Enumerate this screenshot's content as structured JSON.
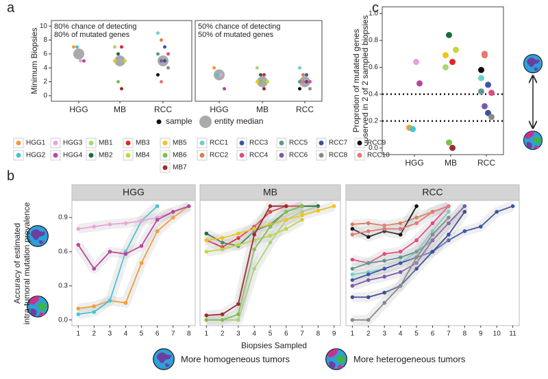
{
  "chart_data": [
    {
      "type": "dot",
      "panel": "a",
      "ylabel": "Minimum Biopsies",
      "annotation": [
        "80% chance of detecting",
        "80% of mutated genes"
      ],
      "categories": [
        "HGG",
        "MB",
        "RCC"
      ],
      "ylim": [
        -0.8,
        10.8
      ],
      "yticks": [
        0,
        2,
        4,
        6,
        8,
        10
      ],
      "marker_legend": [
        "sample",
        "entity median"
      ],
      "median_color": "#aaaaaa",
      "medians": [
        6,
        5,
        5
      ],
      "series": [
        {
          "color": "#f39c35",
          "values": [
            7,
            null,
            null
          ]
        },
        {
          "color": "#45c4d6",
          "values": [
            7,
            null,
            null
          ]
        },
        {
          "color": "#e9a3d9",
          "values": [
            5,
            null,
            null
          ]
        },
        {
          "color": "#b8469f",
          "values": [
            5,
            null,
            null
          ]
        },
        {
          "color": "#a8d672",
          "values": [
            null,
            7,
            null
          ]
        },
        {
          "color": "#1e6b3c",
          "values": [
            null,
            6,
            null
          ]
        },
        {
          "color": "#e0262a",
          "values": [
            null,
            7,
            null
          ]
        },
        {
          "color": "#c3d63b",
          "values": [
            null,
            5,
            null
          ]
        },
        {
          "color": "#f2c31a",
          "values": [
            null,
            5,
            null
          ]
        },
        {
          "color": "#7cc24a",
          "values": [
            null,
            2,
            null
          ]
        },
        {
          "color": "#9b2b30",
          "values": [
            null,
            1,
            null
          ]
        },
        {
          "color": "#6ad1cc",
          "values": [
            null,
            null,
            9
          ]
        },
        {
          "color": "#df7a58",
          "values": [
            null,
            null,
            8
          ]
        },
        {
          "color": "#3a56a8",
          "values": [
            null,
            null,
            7
          ]
        },
        {
          "color": "#e34b7e",
          "values": [
            null,
            null,
            6
          ]
        },
        {
          "color": "#5f9595",
          "values": [
            null,
            null,
            6
          ]
        },
        {
          "color": "#7a5aa8",
          "values": [
            null,
            null,
            5
          ]
        },
        {
          "color": "#3f4e95",
          "values": [
            null,
            null,
            5
          ]
        },
        {
          "color": "#8a8a8a",
          "values": [
            null,
            null,
            4
          ]
        },
        {
          "color": "#111111",
          "values": [
            null,
            null,
            3
          ]
        },
        {
          "color": "#e87575",
          "values": [
            null,
            null,
            2
          ]
        }
      ]
    },
    {
      "type": "dot",
      "annotation": [
        "50% chance of detecting",
        "50% of mutated genes"
      ],
      "categories": [
        "HGG",
        "MB",
        "RCC"
      ],
      "ylim": [
        -0.8,
        10.8
      ],
      "median_color": "#aaaaaa",
      "medians": [
        3,
        2,
        2
      ],
      "series": [
        {
          "color": "#f39c35",
          "values": [
            4,
            null,
            null
          ]
        },
        {
          "color": "#45c4d6",
          "values": [
            3,
            null,
            null
          ]
        },
        {
          "color": "#e9a3d9",
          "values": [
            3,
            null,
            null
          ]
        },
        {
          "color": "#b8469f",
          "values": [
            1,
            null,
            null
          ]
        },
        {
          "color": "#a8d672",
          "values": [
            null,
            4,
            null
          ]
        },
        {
          "color": "#1e6b3c",
          "values": [
            null,
            3,
            null
          ]
        },
        {
          "color": "#e0262a",
          "values": [
            null,
            3,
            null
          ]
        },
        {
          "color": "#c3d63b",
          "values": [
            null,
            2,
            null
          ]
        },
        {
          "color": "#f2c31a",
          "values": [
            null,
            2,
            null
          ]
        },
        {
          "color": "#7cc24a",
          "values": [
            null,
            2,
            null
          ]
        },
        {
          "color": "#9b2b30",
          "values": [
            null,
            1,
            null
          ]
        },
        {
          "color": "#6ad1cc",
          "values": [
            null,
            null,
            4
          ]
        },
        {
          "color": "#df7a58",
          "values": [
            null,
            null,
            3
          ]
        },
        {
          "color": "#3a56a8",
          "values": [
            null,
            null,
            3
          ]
        },
        {
          "color": "#e34b7e",
          "values": [
            null,
            null,
            2
          ]
        },
        {
          "color": "#5f9595",
          "values": [
            null,
            null,
            2
          ]
        },
        {
          "color": "#7a5aa8",
          "values": [
            null,
            null,
            2
          ]
        },
        {
          "color": "#3f4e95",
          "values": [
            null,
            null,
            2
          ]
        },
        {
          "color": "#8a8a8a",
          "values": [
            null,
            null,
            1
          ]
        },
        {
          "color": "#111111",
          "values": [
            null,
            null,
            1
          ]
        },
        {
          "color": "#e87575",
          "values": [
            null,
            null,
            2
          ]
        }
      ]
    },
    {
      "type": "dot",
      "panel": "c",
      "ylabel": [
        "Proprotion of mutated genes",
        "observed in 2 of 2 sampled biopsies"
      ],
      "categories": [
        "HGG",
        "MB",
        "RCC"
      ],
      "ylim": [
        -0.05,
        1.05
      ],
      "yticks": [
        {
          "value": 0,
          "label": "0.0"
        },
        {
          "value": 0.2,
          "label": "0.2"
        },
        {
          "value": 0.4,
          "label": "0.4"
        },
        {
          "value": 0.6,
          "label": "0.6"
        },
        {
          "value": 0.8,
          "label": "0.8"
        },
        {
          "value": 1,
          "label": "1.0"
        }
      ],
      "hlines": [
        0.4,
        0.2
      ],
      "series": [
        {
          "color": "#f39c35",
          "values": [
            0.15,
            null,
            null
          ]
        },
        {
          "color": "#45c4d6",
          "values": [
            0.14,
            null,
            null
          ]
        },
        {
          "color": "#e9a3d9",
          "values": [
            0.64,
            null,
            null
          ]
        },
        {
          "color": "#b8469f",
          "values": [
            0.48,
            null,
            null
          ]
        },
        {
          "color": "#a8d672",
          "values": [
            null,
            0.6,
            null
          ]
        },
        {
          "color": "#1e6b3c",
          "values": [
            null,
            0.84,
            null
          ]
        },
        {
          "color": "#e0262a",
          "values": [
            null,
            0.64,
            null
          ]
        },
        {
          "color": "#c3d63b",
          "values": [
            null,
            0.73,
            null
          ]
        },
        {
          "color": "#f2c31a",
          "values": [
            null,
            0.69,
            null
          ]
        },
        {
          "color": "#7cc24a",
          "values": [
            null,
            0.04,
            null
          ]
        },
        {
          "color": "#9b2b30",
          "values": [
            null,
            0.0,
            null
          ]
        },
        {
          "color": "#6ad1cc",
          "values": [
            null,
            null,
            0.52
          ]
        },
        {
          "color": "#df7a58",
          "values": [
            null,
            null,
            0.69
          ]
        },
        {
          "color": "#3a56a8",
          "values": [
            null,
            null,
            0.47
          ]
        },
        {
          "color": "#e34b7e",
          "values": [
            null,
            null,
            0.41
          ]
        },
        {
          "color": "#5f9595",
          "values": [
            null,
            null,
            0.42
          ]
        },
        {
          "color": "#7a5aa8",
          "values": [
            null,
            null,
            0.31
          ]
        },
        {
          "color": "#3f4e95",
          "values": [
            null,
            null,
            0.26
          ]
        },
        {
          "color": "#8a8a8a",
          "values": [
            null,
            null,
            0.23
          ]
        },
        {
          "color": "#111111",
          "values": [
            null,
            null,
            0.58
          ]
        },
        {
          "color": "#e87575",
          "values": [
            null,
            null,
            0.7
          ]
        }
      ]
    },
    {
      "type": "line",
      "title": "HGG",
      "x": [
        1,
        2,
        3,
        4,
        5,
        6,
        7,
        8
      ],
      "xticks": [
        1,
        2,
        3,
        4,
        5,
        6,
        7,
        8
      ],
      "xlim": [
        0.6,
        8.4
      ],
      "ylim": [
        -0.05,
        1.05
      ],
      "yticks": [
        {
          "value": 0,
          "label": "0.0"
        },
        {
          "value": 0.3,
          "label": "0.3"
        },
        {
          "value": 0.6,
          "label": "0.6"
        },
        {
          "value": 0.9,
          "label": "0.9"
        }
      ],
      "series": [
        {
          "color": "#f39c35",
          "values": [
            0.1,
            0.12,
            0.17,
            0.15,
            0.5,
            0.78,
            0.9,
            1.0
          ]
        },
        {
          "color": "#45c4d6",
          "values": [
            0.05,
            0.07,
            0.17,
            0.6,
            0.87,
            1.0,
            null,
            null
          ]
        },
        {
          "color": "#e9a3d9",
          "values": [
            0.8,
            0.82,
            0.84,
            0.85,
            0.87,
            0.9,
            0.95,
            null
          ]
        },
        {
          "color": "#b8469f",
          "values": [
            0.66,
            0.45,
            0.6,
            0.58,
            0.65,
            0.88,
            0.95,
            1.0
          ]
        }
      ]
    },
    {
      "type": "line",
      "title": "MB",
      "x": [
        1,
        2,
        3,
        4,
        5,
        6,
        7,
        8,
        9
      ],
      "xticks": [
        1,
        2,
        3,
        4,
        5,
        6,
        7,
        8,
        9
      ],
      "xlim": [
        0.6,
        9.4
      ],
      "ylim": [
        -0.05,
        1.05
      ],
      "series": [
        {
          "color": "#a8d672",
          "values": [
            0.0,
            0.0,
            0.0,
            0.45,
            0.68,
            0.88,
            0.95,
            1.0,
            null
          ]
        },
        {
          "color": "#1e6b3c",
          "values": [
            0.76,
            0.68,
            0.65,
            0.78,
            0.84,
            0.95,
            1.0,
            1.0,
            null
          ]
        },
        {
          "color": "#e0262a",
          "values": [
            0.7,
            0.64,
            0.72,
            0.82,
            0.95,
            1.0,
            1.0,
            null,
            null
          ]
        },
        {
          "color": "#c3d63b",
          "values": [
            0.6,
            0.62,
            0.66,
            0.7,
            0.74,
            0.8,
            0.88,
            null,
            null
          ]
        },
        {
          "color": "#f2c31a",
          "values": [
            0.7,
            0.72,
            0.76,
            0.8,
            0.84,
            0.88,
            0.92,
            0.96,
            1.0
          ]
        },
        {
          "color": "#7cc24a",
          "values": [
            0.0,
            0.0,
            0.05,
            0.62,
            0.82,
            0.95,
            1.0,
            null,
            null
          ]
        },
        {
          "color": "#9b2b30",
          "values": [
            0.04,
            0.05,
            0.14,
            0.75,
            1.0,
            1.0,
            null,
            null,
            null
          ]
        }
      ]
    },
    {
      "type": "line",
      "title": "RCC",
      "x": [
        1,
        2,
        3,
        4,
        5,
        6,
        7,
        8,
        9,
        10,
        11
      ],
      "xticks": [
        1,
        2,
        3,
        4,
        5,
        6,
        7,
        8,
        9,
        10,
        11
      ],
      "xlim": [
        0.6,
        11.4
      ],
      "ylim": [
        -0.05,
        1.05
      ],
      "series": [
        {
          "color": "#6ad1cc",
          "values": [
            0.4,
            0.42,
            0.45,
            0.5,
            0.6,
            0.78,
            0.95,
            null,
            null,
            null,
            null
          ]
        },
        {
          "color": "#df7a58",
          "values": [
            0.84,
            0.85,
            0.83,
            0.85,
            0.9,
            0.95,
            1.0,
            null,
            null,
            null,
            null
          ]
        },
        {
          "color": "#3a56a8",
          "values": [
            0.35,
            0.4,
            0.45,
            0.5,
            0.55,
            0.6,
            0.7,
            0.78,
            0.82,
            0.95,
            1.0
          ]
        },
        {
          "color": "#e34b7e",
          "values": [
            0.53,
            0.5,
            0.58,
            0.6,
            0.7,
            0.85,
            1.0,
            null,
            null,
            null,
            null
          ]
        },
        {
          "color": "#5f9595",
          "values": [
            0.45,
            0.5,
            0.52,
            0.55,
            0.6,
            0.7,
            0.85,
            1.0,
            null,
            null,
            null
          ]
        },
        {
          "color": "#7a5aa8",
          "values": [
            0.3,
            0.35,
            0.38,
            0.42,
            0.5,
            0.7,
            0.85,
            1.0,
            null,
            null,
            null
          ]
        },
        {
          "color": "#3f4e95",
          "values": [
            0.2,
            0.2,
            0.24,
            0.3,
            0.45,
            0.6,
            0.75,
            0.95,
            null,
            null,
            null
          ]
        },
        {
          "color": "#8a8a8a",
          "values": [
            0.0,
            0.0,
            0.15,
            0.3,
            0.55,
            0.75,
            0.9,
            null,
            null,
            null,
            null
          ]
        },
        {
          "color": "#111111",
          "values": [
            0.8,
            0.73,
            0.78,
            0.75,
            1.0,
            null,
            null,
            null,
            null,
            null,
            null
          ]
        },
        {
          "color": "#e87575",
          "values": [
            0.75,
            0.78,
            0.8,
            0.8,
            0.85,
            0.95,
            1.0,
            null,
            null,
            null,
            null
          ]
        }
      ]
    }
  ],
  "panel_b": {
    "panel": "b",
    "ylabel": [
      "Accuracy of estimated",
      "intra-tumoral mutation prevalence"
    ],
    "xlabel": "Biopsies Sampled"
  },
  "sample_legend": {
    "series": [
      {
        "name": "HGG1",
        "color": "#f39c35"
      },
      {
        "name": "HGG2",
        "color": "#45c4d6"
      },
      {
        "name": "HGG3",
        "color": "#e9a3d9"
      },
      {
        "name": "HGG4",
        "color": "#b8469f"
      },
      {
        "name": "MB1",
        "color": "#a8d672"
      },
      {
        "name": "MB2",
        "color": "#1e6b3c"
      },
      {
        "name": "MB3",
        "color": "#e0262a"
      },
      {
        "name": "MB4",
        "color": "#c3d63b"
      },
      {
        "name": "MB5",
        "color": "#f2c31a"
      },
      {
        "name": "MB6",
        "color": "#7cc24a"
      },
      {
        "name": "MB7",
        "color": "#9b2b30"
      },
      {
        "name": "RCC1",
        "color": "#6ad1cc"
      },
      {
        "name": "RCC2",
        "color": "#df7a58"
      },
      {
        "name": "RCC3",
        "color": "#3a56a8"
      },
      {
        "name": "RCC4",
        "color": "#e34b7e"
      },
      {
        "name": "RCC5",
        "color": "#5f9595"
      },
      {
        "name": "RCC6",
        "color": "#7a5aa8"
      },
      {
        "name": "RCC7",
        "color": "#3f4e95"
      },
      {
        "name": "RCC8",
        "color": "#8a8a8a"
      },
      {
        "name": "RCC9",
        "color": "#111111"
      },
      {
        "name": "RCC10",
        "color": "#e87575"
      }
    ]
  },
  "footer": {
    "items": [
      "More homogeneous tumors",
      "More heterogeneous tumors"
    ]
  }
}
